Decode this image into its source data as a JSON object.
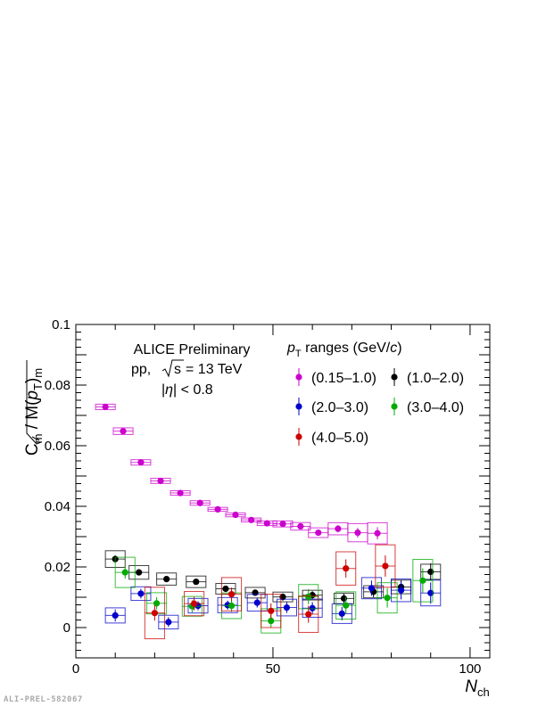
{
  "credit": "ALI-PREL-582067",
  "chart_data": {
    "type": "scatter",
    "y_label_main": "C",
    "y_label_sub": "m",
    "y_label_rest": " / M(",
    "y_label_p": "p",
    "y_label_T": "T",
    "y_label_close": ")",
    "y_label_sub2": "m",
    "x_label_main": "N",
    "x_label_sub": "ch",
    "xlim": [
      0,
      105
    ],
    "ylim": [
      -0.01,
      0.1
    ],
    "x_ticks": [
      0,
      50,
      100
    ],
    "y_ticks": [
      0,
      0.02,
      0.04,
      0.06,
      0.08,
      0.1
    ],
    "x_tick_labels": [
      "0",
      "50",
      "100"
    ],
    "y_tick_labels": [
      "0",
      "0.02",
      "0.04",
      "0.06",
      "0.08",
      "0.1"
    ],
    "annotations": {
      "line1": "ALICE Preliminary",
      "line2_pre": "pp,",
      "line2_post": "= 13 TeV",
      "line2_s": "s",
      "line3_eta": "η",
      "line3_post": "| < 0.8",
      "line3_pre": "|"
    },
    "legend": {
      "title_p": "p",
      "title_T": "T",
      "title_rest": " ranges (GeV/",
      "title_c": "c",
      "title_close": ")",
      "placement": "top-right"
    },
    "series": [
      {
        "name": "(0.15–1.0)",
        "color": "#cc00cc",
        "x": [
          7.5,
          12.0,
          16.5,
          21.5,
          26.5,
          31.5,
          36.0,
          40.5,
          44.5,
          48.5,
          52.5,
          57.0,
          61.5,
          66.5,
          71.5,
          76.5
        ],
        "y": [
          0.0728,
          0.0648,
          0.0545,
          0.0484,
          0.0444,
          0.0411,
          0.039,
          0.0372,
          0.0355,
          0.0344,
          0.0342,
          0.0334,
          0.0313,
          0.0326,
          0.0313,
          0.0311
        ],
        "y_err": [
          0.0004,
          0.0007,
          0.0006,
          0.0005,
          0.0005,
          0.0005,
          0.0004,
          0.0005,
          0.0005,
          0.0005,
          0.0006,
          0.0007,
          0.0008,
          0.0012,
          0.0016,
          0.002
        ],
        "sys_h": [
          0.0018,
          0.0022,
          0.0018,
          0.0017,
          0.0015,
          0.0015,
          0.0013,
          0.0013,
          0.0013,
          0.0015,
          0.002,
          0.0025,
          0.0032,
          0.004,
          0.006,
          0.007
        ]
      },
      {
        "name": "(1.0–2.0)",
        "color": "#000000",
        "x": [
          10.0,
          16.0,
          23.0,
          30.5,
          38.0,
          45.5,
          52.5,
          60.0,
          68.0,
          75.5,
          82.5,
          90.0
        ],
        "y": [
          0.0226,
          0.0182,
          0.016,
          0.0151,
          0.0128,
          0.0115,
          0.0101,
          0.0107,
          0.0096,
          0.0118,
          0.0134,
          0.0184
        ],
        "y_err": [
          0.0012,
          0.001,
          0.0009,
          0.0009,
          0.001,
          0.001,
          0.0012,
          0.0013,
          0.0016,
          0.0018,
          0.0022,
          0.0028
        ],
        "sys_h": [
          0.0055,
          0.0045,
          0.004,
          0.0038,
          0.0035,
          0.0035,
          0.0032,
          0.0032,
          0.0035,
          0.004,
          0.0045,
          0.005
        ]
      },
      {
        "name": "(2.0–3.0)",
        "color": "#0000cc",
        "x": [
          10.0,
          16.5,
          23.5,
          31.0,
          38.5,
          46.0,
          53.5,
          60.0,
          67.5,
          75.0,
          82.5,
          90.0
        ],
        "y": [
          0.004,
          0.0112,
          0.0018,
          0.0072,
          0.0074,
          0.0082,
          0.0066,
          0.0064,
          0.0046,
          0.013,
          0.0123,
          0.0114
        ],
        "y_err": [
          0.002,
          0.0016,
          0.0016,
          0.0015,
          0.0015,
          0.0016,
          0.0018,
          0.002,
          0.0022,
          0.0025,
          0.003,
          0.0035
        ],
        "sys_h": [
          0.005,
          0.0045,
          0.0045,
          0.0048,
          0.005,
          0.0055,
          0.0055,
          0.006,
          0.0065,
          0.007,
          0.0075,
          0.0085
        ]
      },
      {
        "name": "(3.0–4.0)",
        "color": "#00aa00",
        "x": [
          12.5,
          20.5,
          29.5,
          39.5,
          49.5,
          59.0,
          68.5,
          79.0,
          88.0
        ],
        "y": [
          0.0182,
          0.008,
          0.007,
          0.0072,
          0.0022,
          0.0102,
          0.0073,
          0.0098,
          0.0155
        ],
        "y_err": [
          0.002,
          0.002,
          0.002,
          0.002,
          0.0022,
          0.0025,
          0.0028,
          0.0032,
          0.004
        ],
        "sys_h": [
          0.01,
          0.007,
          0.0065,
          0.0085,
          0.008,
          0.008,
          0.009,
          0.01,
          0.014
        ]
      },
      {
        "name": "(4.0–5.0)",
        "color": "#cc0000",
        "x": [
          20.0,
          30.0,
          39.5,
          49.5,
          59.0,
          68.5,
          78.5
        ],
        "y": [
          0.0048,
          0.0079,
          0.011,
          0.0055,
          0.0044,
          0.0195,
          0.0203
        ],
        "y_err": [
          0.0025,
          0.0022,
          0.0022,
          0.0025,
          0.0028,
          0.003,
          0.0035
        ],
        "sys_h": [
          0.017,
          0.008,
          0.011,
          0.011,
          0.012,
          0.011,
          0.014
        ]
      }
    ]
  }
}
